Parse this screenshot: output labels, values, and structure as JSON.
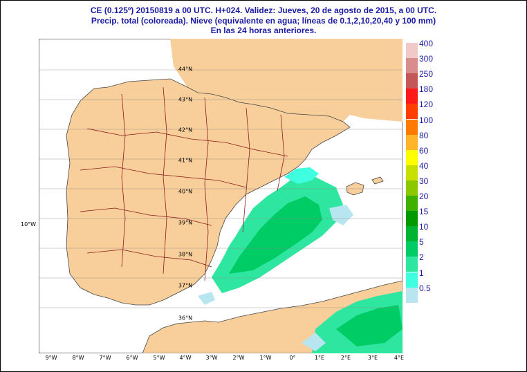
{
  "header": {
    "line1": "CE (0.125º) 20150819 a 00 UTC.  H+024. Validez: Jueves, 20 de agosto de 2015,  a  00 UTC.",
    "line2": "Precip. total (coloreada). Nieve (equivalente en agua; líneas de 0.1,2,10,20,40 y 100 mm)",
    "line3": "En las 24 horas anteriores."
  },
  "map": {
    "lon_labels": [
      "9°W",
      "8°W",
      "7°W",
      "6°W",
      "5°W",
      "4°W",
      "3°W",
      "2°W",
      "1°W",
      "0°",
      "1°E",
      "2°E",
      "3°E",
      "4°E"
    ],
    "lat_labels": [
      "44°N",
      "43°N",
      "42°N",
      "41°N",
      "40°N",
      "39°N",
      "38°N",
      "37°N",
      "36°N"
    ],
    "side_label": "10°W",
    "colors": {
      "land": "#f8ce9a",
      "sea": "#ffffff",
      "border": "#8b1a1a",
      "coast": "#444444"
    }
  },
  "legend": {
    "items": [
      {
        "label": "400",
        "color": "#f2c9c9"
      },
      {
        "label": "300",
        "color": "#d98c8c"
      },
      {
        "label": "250",
        "color": "#c45858"
      },
      {
        "label": "180",
        "color": "#ff1a1a"
      },
      {
        "label": "120",
        "color": "#ff3d00"
      },
      {
        "label": "100",
        "color": "#ff7a00"
      },
      {
        "label": "80",
        "color": "#ffb42a"
      },
      {
        "label": "60",
        "color": "#ffff00"
      },
      {
        "label": "40",
        "color": "#c8e000"
      },
      {
        "label": "30",
        "color": "#8cc800"
      },
      {
        "label": "20",
        "color": "#40b000"
      },
      {
        "label": "15",
        "color": "#009a00"
      },
      {
        "label": "10",
        "color": "#00b432"
      },
      {
        "label": "5",
        "color": "#00cc66"
      },
      {
        "label": "2",
        "color": "#2ee6a0"
      },
      {
        "label": "1",
        "color": "#40ffe0"
      },
      {
        "label": "0.5",
        "color": "#b8e6f0"
      }
    ]
  }
}
